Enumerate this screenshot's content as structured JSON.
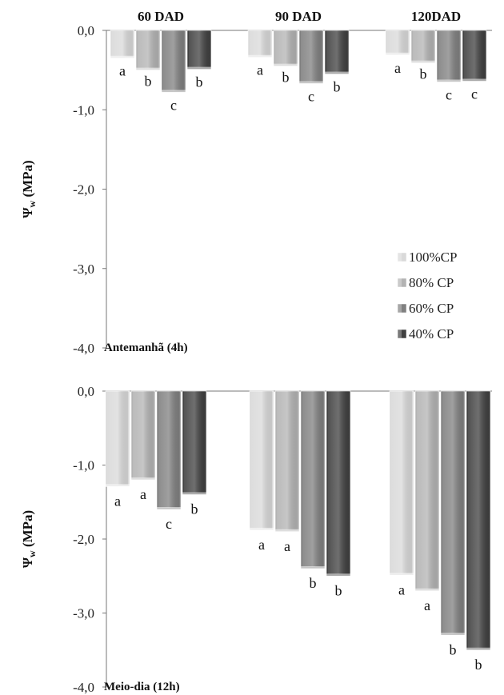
{
  "chart_data": [
    {
      "type": "bar",
      "categories": [
        "60 DAD",
        "90 DAD",
        "120DAD"
      ],
      "panel_label": "Antemanhã (4h)",
      "ylabel": "Ψw (MPa)",
      "ylabel_main": "Ψ",
      "ylabel_sub": "w",
      "ylabel_rest": " (MPa)",
      "ylim": [
        -4.0,
        0.0
      ],
      "yticks": [
        "0,0",
        "-1,0",
        "-2,0",
        "-3,0",
        "-4,0"
      ],
      "series": [
        {
          "name": "100%CP",
          "color": "#d9d9d9",
          "values": [
            -0.35,
            -0.34,
            -0.31
          ]
        },
        {
          "name": "80% CP",
          "color": "#b3b3b3",
          "values": [
            -0.5,
            -0.45,
            -0.41
          ]
        },
        {
          "name": "60% CP",
          "color": "#808080",
          "values": [
            -0.78,
            -0.67,
            -0.65
          ]
        },
        {
          "name": "40% CP",
          "color": "#404040",
          "values": [
            -0.49,
            -0.55,
            -0.64
          ]
        }
      ],
      "letters": [
        [
          "a",
          "b",
          "c",
          "b"
        ],
        [
          "a",
          "b",
          "c",
          "b"
        ],
        [
          "a",
          "b",
          "c",
          "c"
        ]
      ]
    },
    {
      "type": "bar",
      "categories": [
        "60 DAD",
        "90 DAD",
        "120DAD"
      ],
      "panel_label": "Meio-dia  (12h)",
      "ylabel": "Ψw (MPa)",
      "ylabel_main": "Ψ",
      "ylabel_sub": "w",
      "ylabel_rest": " (MPa)",
      "ylim": [
        -4.0,
        0.0
      ],
      "yticks": [
        "0,0",
        "-1,0",
        "-2,0",
        "-3,0",
        "-4,0"
      ],
      "series": [
        {
          "name": "100%CP",
          "color": "#d9d9d9",
          "values": [
            -1.29,
            -1.88,
            -2.49
          ]
        },
        {
          "name": "80% CP",
          "color": "#b3b3b3",
          "values": [
            -1.2,
            -1.9,
            -2.7
          ]
        },
        {
          "name": "60% CP",
          "color": "#808080",
          "values": [
            -1.6,
            -2.4,
            -3.3
          ]
        },
        {
          "name": "40% CP",
          "color": "#404040",
          "values": [
            -1.4,
            -2.5,
            -3.5
          ]
        }
      ],
      "letters": [
        [
          "a",
          "a",
          "c",
          "b"
        ],
        [
          "a",
          "a",
          "b",
          "b"
        ],
        [
          "a",
          "a",
          "b",
          "b"
        ]
      ]
    }
  ],
  "legend": [
    "100%CP",
    "80% CP",
    "60% CP",
    "40% CP"
  ]
}
